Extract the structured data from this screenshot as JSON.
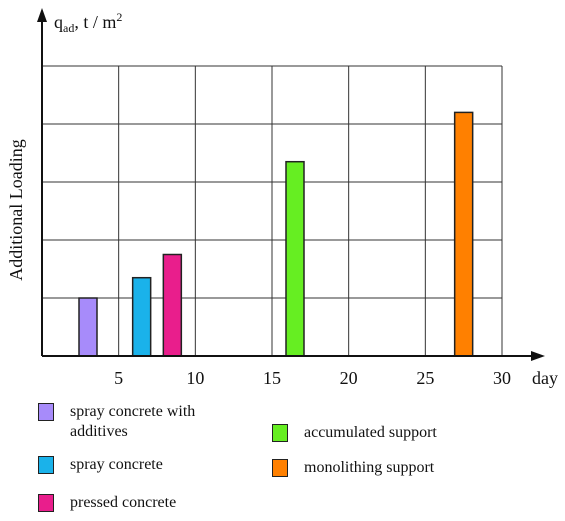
{
  "chart_data": {
    "type": "bar",
    "y_axis_symbol": "q",
    "y_axis_subscript": "ad",
    "y_axis_unit": ", t / m",
    "y_axis_unit_exponent": "2",
    "ylabel": "Additional Loading",
    "xlabel": "day",
    "xlim": [
      0,
      31
    ],
    "x_ticks": [
      5,
      10,
      15,
      20,
      25,
      30
    ],
    "ylim": [
      0,
      5
    ],
    "grid": true,
    "legend_position": "bottom",
    "series": [
      {
        "name": "spray concrete with\nadditives",
        "color": "#a78bfa",
        "x": 3,
        "value": 1.0
      },
      {
        "name": "spray concrete",
        "color": "#1ab2ea",
        "x": 6.5,
        "value": 1.35
      },
      {
        "name": "pressed concrete",
        "color": "#e91e8c",
        "x": 8.5,
        "value": 1.75
      },
      {
        "name": "accumulated support",
        "color": "#66ee22",
        "x": 16.5,
        "value": 3.35
      },
      {
        "name": "monolithing support",
        "color": "#ff8000",
        "x": 27.5,
        "value": 4.2
      }
    ]
  }
}
